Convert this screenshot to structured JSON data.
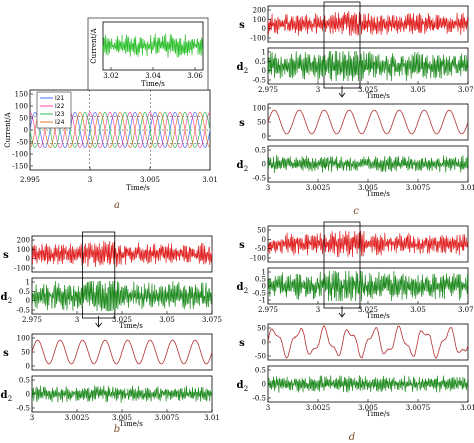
{
  "chart_data": [
    {
      "id": "a",
      "type": "line",
      "caption": "a",
      "main": {
        "ylabel": "Current/A",
        "xlabel": "Time/s",
        "xticks": [
          "2.995",
          "3",
          "3.005",
          "3.01"
        ],
        "yticks": [
          "-150",
          "-100",
          "-50",
          "0",
          "50",
          "100",
          "150"
        ],
        "xlim": [
          2.995,
          3.01
        ],
        "ylim": [
          -150,
          150
        ],
        "series": [
          {
            "name": "I21",
            "color": "#4a6cff",
            "amplitude": 70
          },
          {
            "name": "I22",
            "color": "#ff4aa8",
            "amplitude": 70
          },
          {
            "name": "I23",
            "color": "#2bbf5a",
            "amplitude": 70
          },
          {
            "name": "I24",
            "color": "#e87a2e",
            "amplitude": 70
          }
        ]
      },
      "inset": {
        "ylabel": "Current/A",
        "xlabel": "Time/s",
        "xticks": [
          "3.02",
          "3.04",
          "3.06"
        ],
        "color": "#2bbf2b"
      }
    },
    {
      "id": "b",
      "caption": "b",
      "top": {
        "s_label": "s",
        "d_label": "d",
        "d_sub": "2",
        "s_yticks": [
          "200",
          "100",
          "0",
          "-100"
        ],
        "d_yticks": [
          "1",
          "0.5",
          "0",
          "-0.5"
        ],
        "xticks": [
          "2.975",
          "3",
          "3.025",
          "3.05",
          "3.075"
        ],
        "xlabel": "Time/s"
      },
      "bottom": {
        "s_label": "s",
        "d_label": "d",
        "d_sub": "2",
        "s_yticks": [
          "100",
          "50",
          "0"
        ],
        "d_yticks": [
          "0.5",
          "0",
          "-0.5"
        ],
        "xticks": [
          "3",
          "3.0025",
          "3.005",
          "3.0075",
          "3.01"
        ],
        "xlabel": "Time/s"
      }
    },
    {
      "id": "c",
      "caption": "c",
      "top": {
        "s_label": "s",
        "d_label": "d",
        "d_sub": "2",
        "s_yticks": [
          "200",
          "100",
          "0",
          "-100"
        ],
        "d_yticks": [
          "1",
          "0.5",
          "0",
          "-0.5"
        ],
        "xticks": [
          "2.975",
          "3",
          "3.025",
          "3.05",
          "3.075"
        ],
        "xlabel": "Time/s"
      },
      "bottom": {
        "s_label": "s",
        "d_label": "d",
        "d_sub": "2",
        "s_yticks": [
          "100",
          "50",
          "0"
        ],
        "d_yticks": [
          "0.5",
          "0",
          "-0.5"
        ],
        "xticks": [
          "3",
          "3.0025",
          "3.005",
          "3.0075",
          "3.01"
        ],
        "xlabel": "Time/s"
      }
    },
    {
      "id": "d",
      "caption": "d",
      "top": {
        "s_label": "s",
        "d_label": "d",
        "d_sub": "2",
        "s_yticks": [
          "50",
          "0",
          "-50",
          "-100"
        ],
        "d_yticks": [
          "1",
          "0.5",
          "0",
          "-0.5",
          "-1"
        ],
        "xticks": [
          "2.975",
          "3",
          "3.025",
          "3.05",
          "3.075"
        ],
        "xlabel": "Time/s"
      },
      "bottom": {
        "s_label": "s",
        "d_label": "d",
        "d_sub": "2",
        "s_yticks": [
          "50",
          "0",
          "-50"
        ],
        "d_yticks": [
          "0.5",
          "0",
          "-0.5"
        ],
        "xticks": [
          "3",
          "3.0025",
          "3.005",
          "3.0075",
          "3.01"
        ],
        "xlabel": "Time/s"
      }
    }
  ],
  "colors": {
    "signal_red": "#e02020",
    "detail_green": "#1e8a1e",
    "sine": "#b33030",
    "box": "#000000"
  }
}
